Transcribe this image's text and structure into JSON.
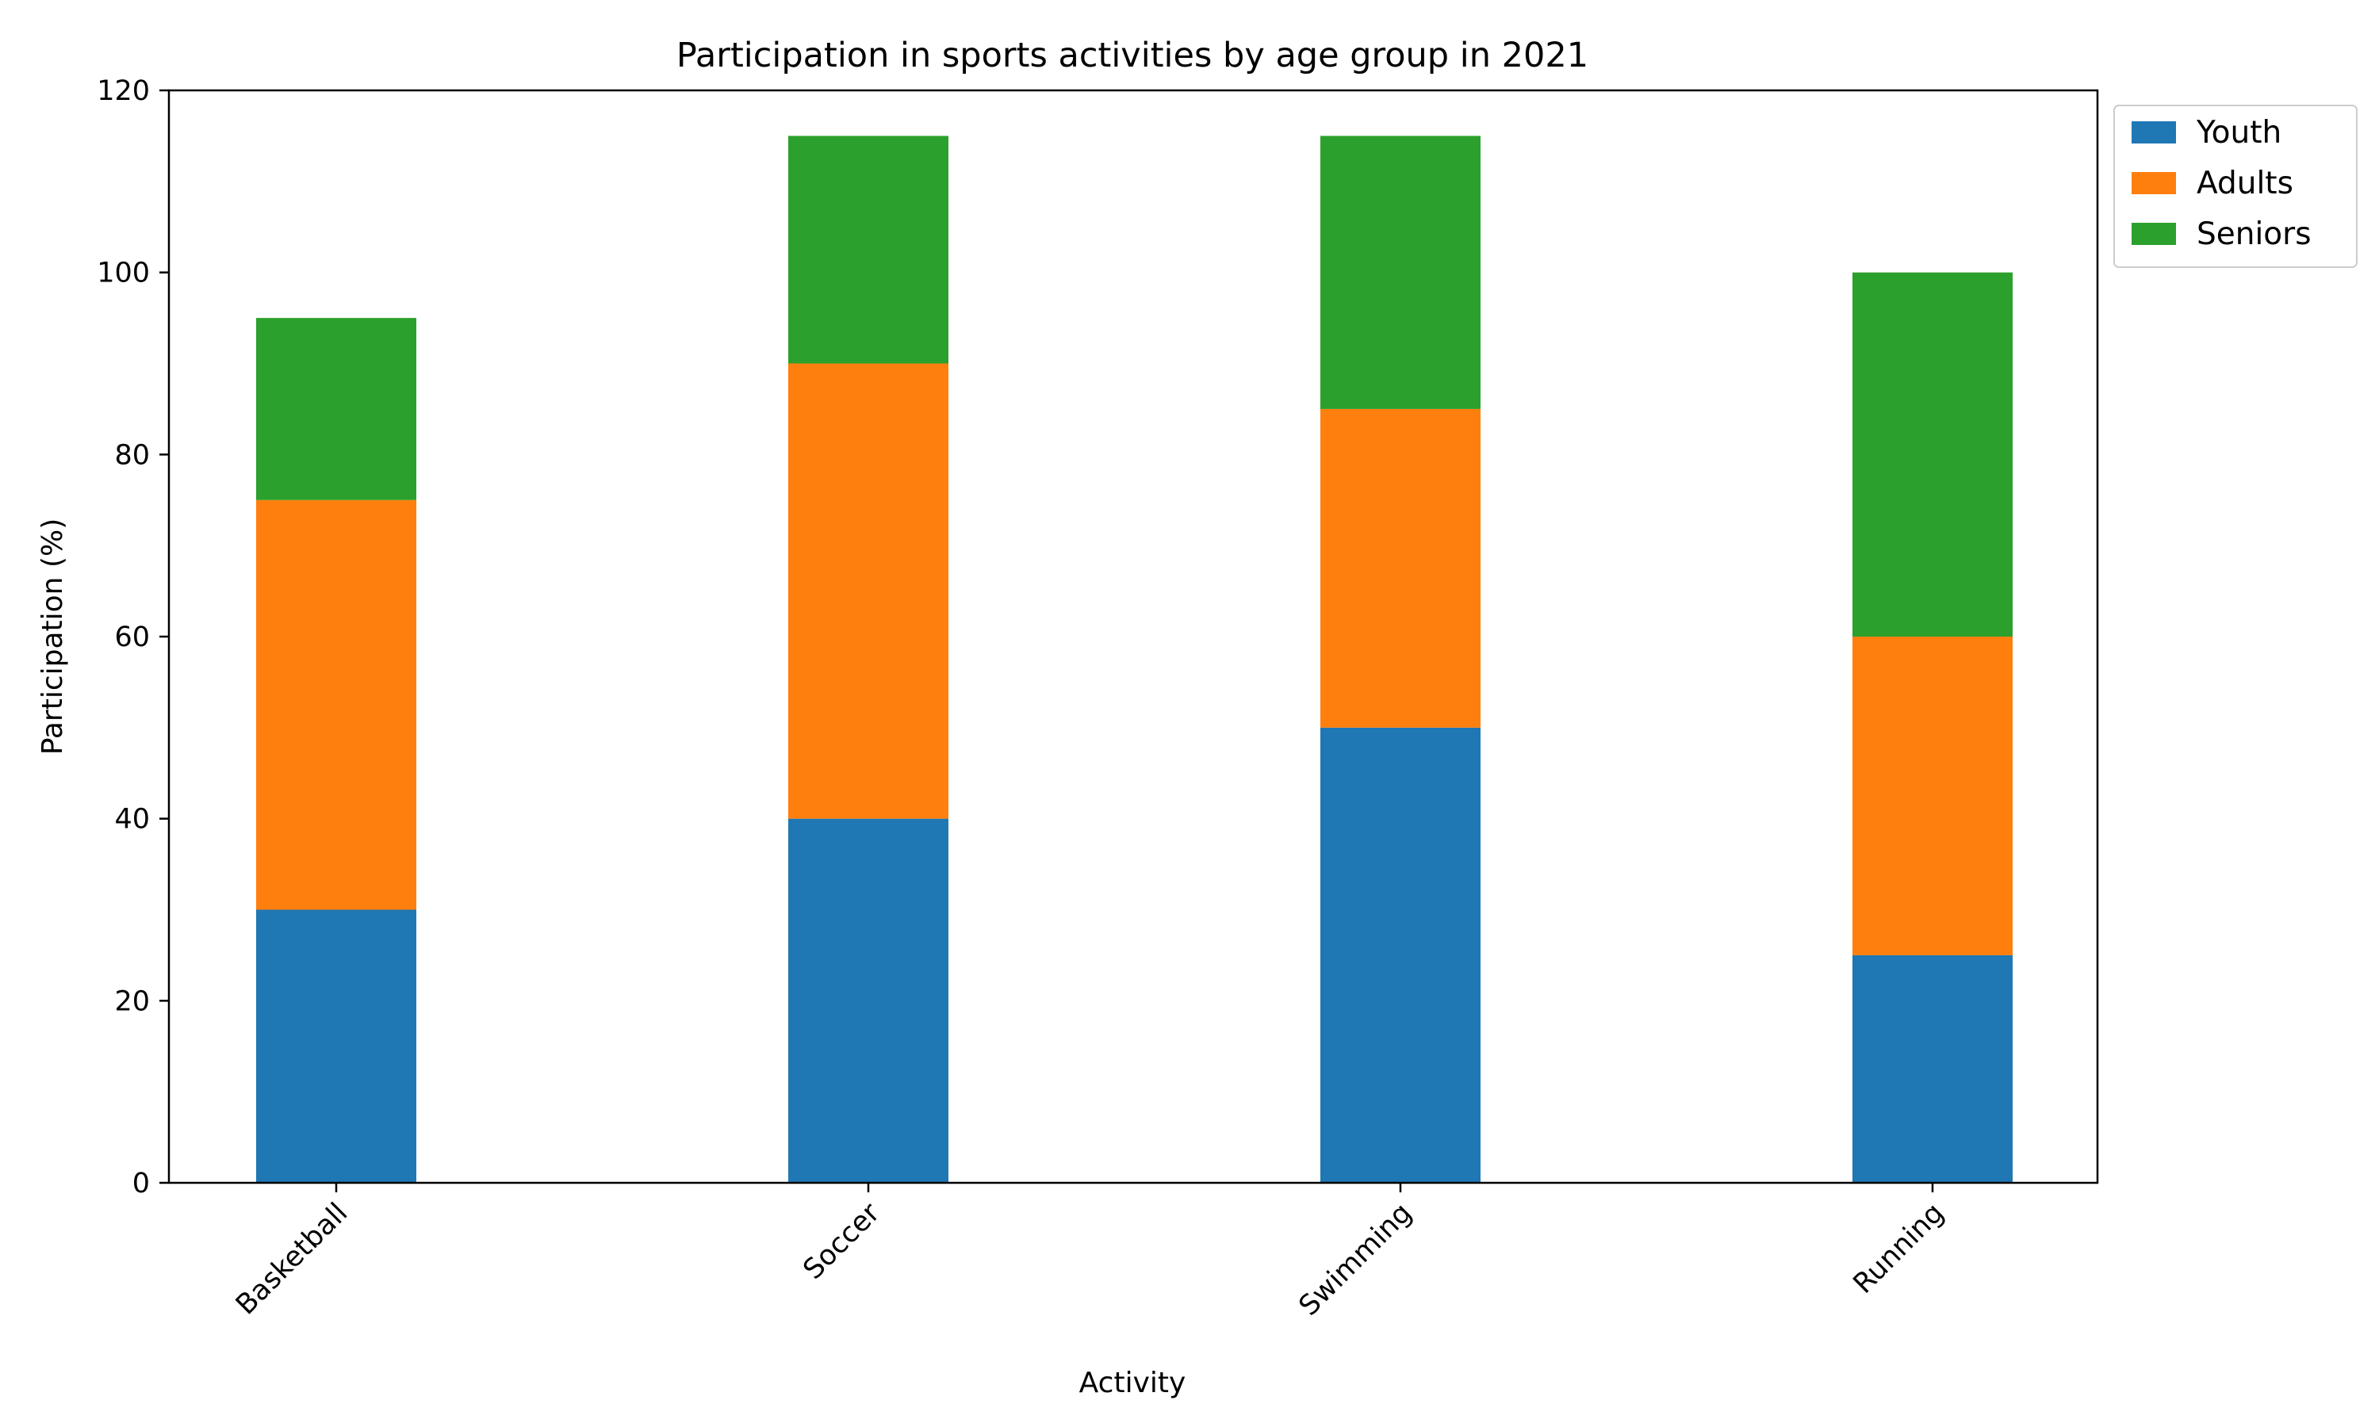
{
  "chart_data": {
    "type": "bar",
    "stacked": true,
    "title": "Participation in sports activities by age group in 2021",
    "xlabel": "Activity",
    "ylabel": "Participation (%)",
    "categories": [
      "Basketball",
      "Soccer",
      "Swimming",
      "Running"
    ],
    "series": [
      {
        "name": "Youth",
        "values": [
          30,
          40,
          50,
          25
        ],
        "color": "#1f77b4"
      },
      {
        "name": "Adults",
        "values": [
          45,
          50,
          35,
          35
        ],
        "color": "#ff7f0e"
      },
      {
        "name": "Seniors",
        "values": [
          20,
          25,
          30,
          40
        ],
        "color": "#2ca02c"
      }
    ],
    "ylim": [
      0,
      120
    ],
    "yticks": [
      0,
      20,
      40,
      60,
      80,
      100,
      120
    ],
    "grid": false,
    "legend_position": "outside-top-right"
  }
}
